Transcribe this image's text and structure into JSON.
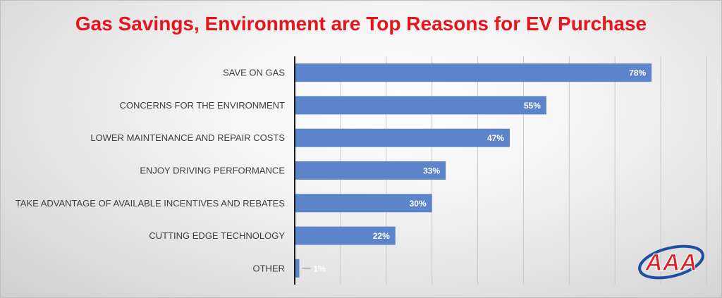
{
  "chart_data": {
    "type": "bar",
    "orientation": "horizontal",
    "title": "Gas Savings, Environment are Top Reasons for EV Purchase",
    "categories": [
      "SAVE ON GAS",
      "CONCERNS FOR THE ENVIRONMENT",
      "LOWER MAINTENANCE AND REPAIR COSTS",
      "ENJOY DRIVING PERFORMANCE",
      "TAKE ADVANTAGE OF AVAILABLE INCENTIVES AND REBATES",
      "CUTTING EDGE TECHNOLOGY",
      "OTHER"
    ],
    "values": [
      78,
      55,
      47,
      33,
      30,
      22,
      1
    ],
    "value_labels": [
      "78%",
      "55%",
      "47%",
      "33%",
      "30%",
      "22%",
      "1%"
    ],
    "xlim": [
      0,
      90
    ],
    "grid": true,
    "bar_color": "#5b84cb",
    "title_color": "#e8141c"
  },
  "logo": {
    "text": "AAA",
    "red": "#e31b23",
    "blue": "#1f4fa3"
  }
}
